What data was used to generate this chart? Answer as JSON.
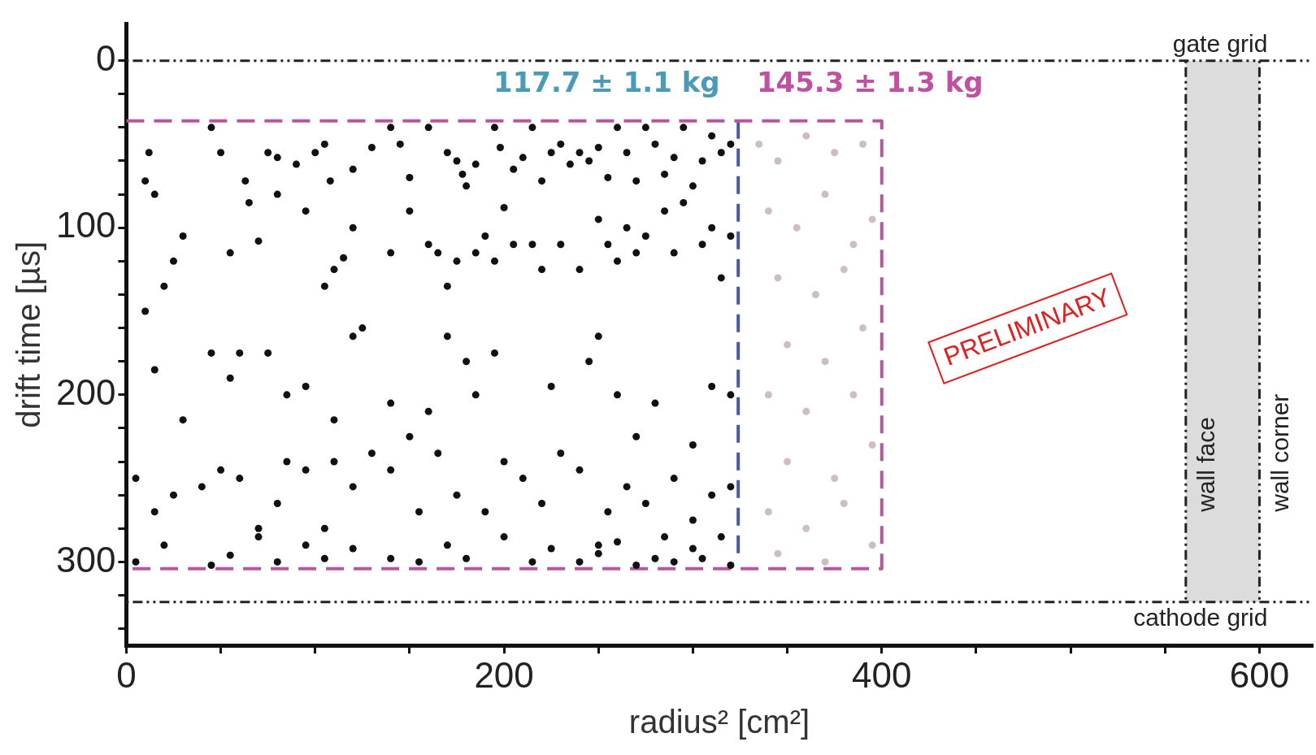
{
  "chart_data": {
    "type": "scatter",
    "xlabel": "radius² [cm²]",
    "ylabel": "drift time [µs]",
    "xlim": [
      0,
      628
    ],
    "ylim": [
      350,
      -22
    ],
    "xticks": [
      0,
      {
        "value": 50,
        "label": null
      },
      {
        "value": 100,
        "label": null
      },
      {
        "value": 150,
        "label": null
      },
      200,
      {
        "value": 250,
        "label": null
      },
      {
        "value": 300,
        "label": null
      },
      {
        "value": 350,
        "label": null
      },
      400,
      {
        "value": 450,
        "label": null
      },
      {
        "value": 500,
        "label": null
      },
      {
        "value": 550,
        "label": null
      },
      600
    ],
    "yticks": [
      0,
      {
        "value": 20,
        "label": null
      },
      {
        "value": 40,
        "label": null
      },
      {
        "value": 60,
        "label": null
      },
      {
        "value": 80,
        "label": null
      },
      100,
      {
        "value": 120,
        "label": null
      },
      {
        "value": 140,
        "label": null
      },
      {
        "value": 160,
        "label": null
      },
      {
        "value": 180,
        "label": null
      },
      200,
      {
        "value": 220,
        "label": null
      },
      {
        "value": 240,
        "label": null
      },
      {
        "value": 260,
        "label": null
      },
      {
        "value": 280,
        "label": null
      },
      300,
      {
        "value": 320,
        "label": null
      },
      {
        "value": 340,
        "label": null
      }
    ],
    "grid": false,
    "legend": false,
    "marker": "circle",
    "series": [
      {
        "color": "#111111",
        "x": [
          12,
          10,
          15,
          45,
          50,
          63,
          75,
          80,
          90,
          100,
          105,
          108,
          120,
          130,
          140,
          145,
          150,
          160,
          170,
          175,
          178,
          180,
          185,
          195,
          198,
          205,
          210,
          215,
          220,
          225,
          230,
          235,
          240,
          245,
          250,
          255,
          260,
          265,
          270,
          275,
          280,
          285,
          290,
          295,
          300,
          305,
          310,
          315,
          320,
          20,
          25,
          30,
          55,
          65,
          70,
          80,
          95,
          105,
          110,
          115,
          120,
          125,
          140,
          150,
          160,
          165,
          170,
          175,
          185,
          190,
          195,
          200,
          205,
          215,
          220,
          230,
          240,
          250,
          255,
          260,
          265,
          270,
          275,
          285,
          290,
          295,
          305,
          310,
          315,
          320,
          10,
          15,
          30,
          45,
          55,
          60,
          75,
          85,
          95,
          110,
          120,
          140,
          160,
          170,
          180,
          185,
          195,
          225,
          245,
          250,
          260,
          270,
          280,
          300,
          310,
          320,
          5,
          15,
          25,
          40,
          50,
          60,
          70,
          80,
          85,
          95,
          105,
          110,
          120,
          130,
          140,
          150,
          155,
          165,
          175,
          190,
          200,
          210,
          220,
          230,
          240,
          250,
          255,
          265,
          275,
          285,
          290,
          300,
          310,
          320,
          5,
          20,
          45,
          55,
          70,
          80,
          95,
          105,
          120,
          140,
          155,
          170,
          180,
          200,
          215,
          225,
          240,
          250,
          260,
          270,
          280,
          290,
          300,
          305,
          315,
          320
        ],
        "values": [
          55,
          72,
          80,
          40,
          55,
          72,
          55,
          58,
          62,
          55,
          50,
          72,
          65,
          52,
          40,
          50,
          70,
          40,
          55,
          60,
          68,
          75,
          62,
          40,
          52,
          65,
          58,
          40,
          72,
          55,
          50,
          62,
          55,
          60,
          52,
          70,
          40,
          55,
          72,
          40,
          50,
          68,
          58,
          40,
          75,
          60,
          45,
          55,
          50,
          135,
          120,
          105,
          115,
          85,
          108,
          80,
          90,
          135,
          125,
          118,
          100,
          160,
          115,
          90,
          110,
          115,
          135,
          120,
          115,
          105,
          120,
          88,
          110,
          110,
          125,
          110,
          125,
          95,
          110,
          120,
          100,
          115,
          105,
          90,
          115,
          85,
          110,
          100,
          130,
          105,
          150,
          185,
          215,
          175,
          190,
          175,
          175,
          200,
          195,
          215,
          165,
          205,
          210,
          165,
          180,
          200,
          175,
          195,
          180,
          165,
          200,
          225,
          205,
          230,
          195,
          200,
          250,
          270,
          260,
          255,
          245,
          250,
          280,
          265,
          240,
          245,
          280,
          240,
          255,
          235,
          245,
          225,
          270,
          235,
          260,
          270,
          240,
          250,
          265,
          235,
          245,
          290,
          270,
          255,
          265,
          285,
          250,
          275,
          260,
          255,
          300,
          290,
          302,
          296,
          285,
          300,
          290,
          298,
          292,
          298,
          300,
          290,
          298,
          285,
          300,
          292,
          300,
          295,
          288,
          302,
          298,
          300,
          292,
          298,
          285,
          302
        ]
      },
      {
        "type": "scatter",
        "color": "#cdbfbf",
        "x": [
          335,
          345,
          360,
          375,
          390,
          340,
          355,
          370,
          385,
          395,
          345,
          365,
          380,
          350,
          370,
          390,
          340,
          360,
          385,
          350,
          375,
          395,
          340,
          360,
          380,
          395,
          345,
          370
        ],
        "values": [
          50,
          60,
          45,
          55,
          50,
          90,
          100,
          80,
          110,
          95,
          130,
          140,
          125,
          170,
          180,
          160,
          200,
          210,
          200,
          240,
          250,
          230,
          270,
          280,
          265,
          290,
          295,
          300
        ]
      },
      {
        "type": "line",
        "color": "#b8589c",
        "line_style": "dashed",
        "marker": "none",
        "x": [
          0,
          400,
          400,
          0
        ],
        "values": [
          36,
          36,
          304,
          304
        ]
      },
      {
        "type": "line",
        "color": "#4a5a9a",
        "line_style": "dashed",
        "marker": "none",
        "x": [
          324,
          324
        ],
        "values": [
          36,
          295
        ]
      }
    ],
    "ref_lines": [
      {
        "axis": "y",
        "value": 0,
        "label": "gate grid",
        "color": "#222222",
        "line_style": "dotted"
      },
      {
        "axis": "y",
        "value": 324,
        "label": "cathode grid",
        "color": "#222222",
        "line_style": "dotted"
      },
      {
        "axis": "x",
        "value": 561,
        "label": "wall face",
        "color": "#222222",
        "line_style": "dotted"
      },
      {
        "axis": "x",
        "value": 600,
        "label": "wall corner",
        "color": "#222222",
        "line_style": "dotted"
      }
    ],
    "bands": [
      {
        "axis": "x",
        "from": 561,
        "to": 600,
        "color": "#dcdcdc"
      }
    ],
    "annotations": [
      "117.7 ± 1.1 kg",
      "145.3 ± 1.3 kg",
      "PRELIMINARY"
    ]
  }
}
